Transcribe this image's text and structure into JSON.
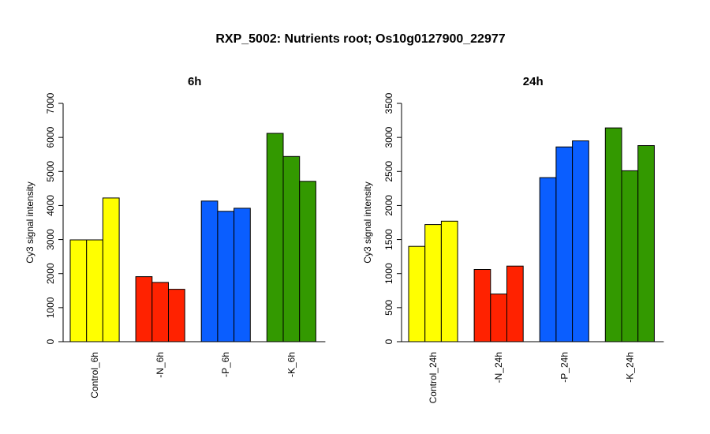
{
  "title": "RXP_5002: Nutrients root; Os10g0127900_22977",
  "chart_data": [
    {
      "type": "bar",
      "title": "6h",
      "ylabel": "Cy3 signal intensity",
      "ylim": [
        0,
        7000
      ],
      "yticks": [
        0,
        1000,
        2000,
        3000,
        4000,
        5000,
        6000,
        7000
      ],
      "groups": [
        {
          "label": "Control_6h",
          "color": "#ffff00",
          "values": [
            2990,
            2990,
            4220
          ]
        },
        {
          "label": "-N_6h",
          "color": "#ff2200",
          "values": [
            1910,
            1740,
            1540
          ]
        },
        {
          "label": "-P_6h",
          "color": "#0a5eff",
          "values": [
            4130,
            3830,
            3920
          ]
        },
        {
          "label": "-K_6h",
          "color": "#339900",
          "values": [
            6120,
            5440,
            4710
          ]
        }
      ]
    },
    {
      "type": "bar",
      "title": "24h",
      "ylabel": "Cy3 signal intensity",
      "ylim": [
        0,
        3500
      ],
      "yticks": [
        0,
        500,
        1000,
        1500,
        2000,
        2500,
        3000,
        3500
      ],
      "groups": [
        {
          "label": "Control_24h",
          "color": "#ffff00",
          "values": [
            1400,
            1720,
            1770
          ]
        },
        {
          "label": "-N_24h",
          "color": "#ff2200",
          "values": [
            1060,
            700,
            1110
          ]
        },
        {
          "label": "-P_24h",
          "color": "#0a5eff",
          "values": [
            2410,
            2860,
            2950
          ]
        },
        {
          "label": "-K_24h",
          "color": "#339900",
          "values": [
            3140,
            2510,
            2880
          ]
        }
      ]
    }
  ]
}
